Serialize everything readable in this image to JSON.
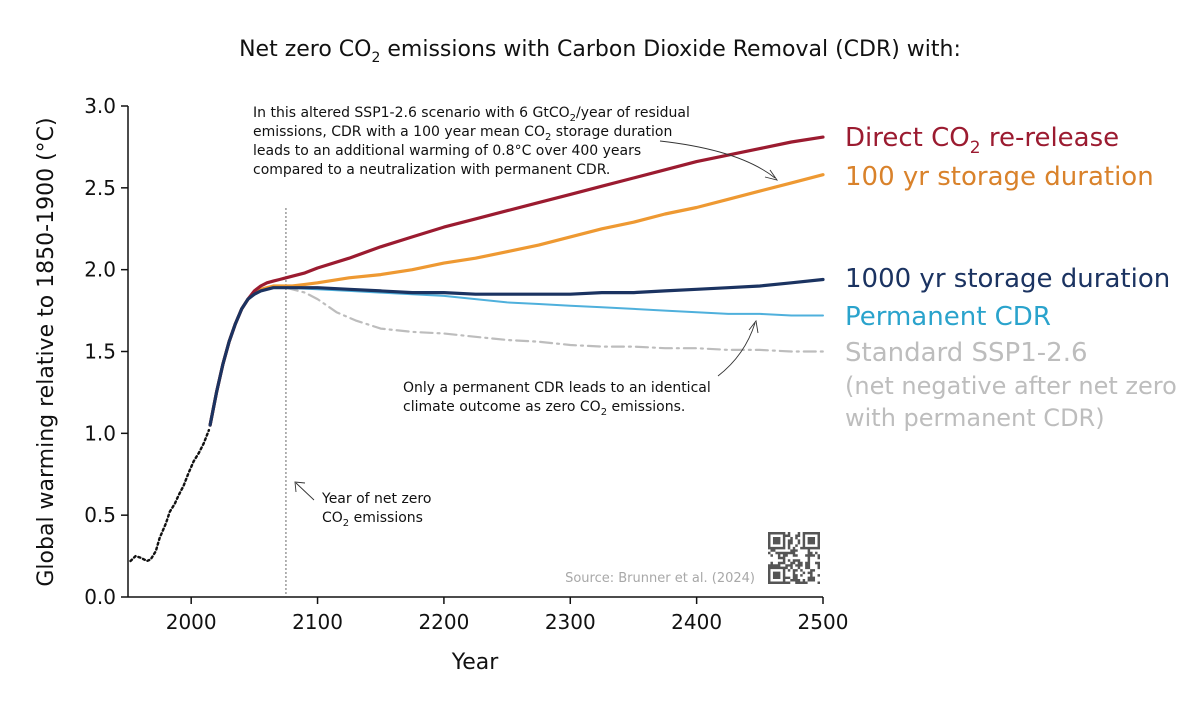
{
  "chart_data": {
    "type": "line",
    "title_pre": "Net zero CO",
    "title_sub": "2",
    "title_post": " emissions with Carbon Dioxide Removal (CDR) with:",
    "xlabel": "Year",
    "ylabel": "Global warming relative to 1850-1900 (°C)",
    "xlim": [
      1950,
      2500
    ],
    "ylim": [
      0,
      3.0
    ],
    "x_ticks": [
      2000,
      2100,
      2200,
      2300,
      2400,
      2500
    ],
    "y_ticks": [
      0.0,
      0.5,
      1.0,
      1.5,
      2.0,
      2.5,
      3.0
    ],
    "y_tick_labels": [
      "0.0",
      "0.5",
      "1.0",
      "1.5",
      "2.0",
      "2.5",
      "3.0"
    ],
    "historical": {
      "name": "Historical",
      "color": "#111111",
      "x": [
        1952,
        1956,
        1960,
        1965,
        1968,
        1972,
        1975,
        1980,
        1983,
        1987,
        1990,
        1994,
        1998,
        2002,
        2006,
        2010,
        2014
      ],
      "y": [
        0.22,
        0.25,
        0.24,
        0.22,
        0.23,
        0.28,
        0.36,
        0.45,
        0.52,
        0.57,
        0.62,
        0.68,
        0.76,
        0.83,
        0.88,
        0.94,
        1.02
      ]
    },
    "series": [
      {
        "name": "Direct CO2 re-release",
        "color": "#9b1b30",
        "x": [
          2015,
          2020,
          2025,
          2030,
          2035,
          2040,
          2045,
          2050,
          2055,
          2060,
          2065,
          2070,
          2075,
          2080,
          2090,
          2100,
          2125,
          2150,
          2175,
          2200,
          2225,
          2250,
          2275,
          2300,
          2325,
          2350,
          2375,
          2400,
          2425,
          2450,
          2475,
          2500
        ],
        "y": [
          1.05,
          1.25,
          1.42,
          1.56,
          1.67,
          1.76,
          1.82,
          1.87,
          1.9,
          1.92,
          1.93,
          1.94,
          1.95,
          1.96,
          1.98,
          2.01,
          2.07,
          2.14,
          2.2,
          2.26,
          2.31,
          2.36,
          2.41,
          2.46,
          2.51,
          2.56,
          2.61,
          2.66,
          2.7,
          2.74,
          2.78,
          2.81
        ]
      },
      {
        "name": "100 yr storage duration",
        "color": "#ee9932",
        "x": [
          2015,
          2020,
          2025,
          2030,
          2035,
          2040,
          2045,
          2050,
          2055,
          2060,
          2065,
          2070,
          2075,
          2080,
          2090,
          2100,
          2125,
          2150,
          2175,
          2200,
          2225,
          2250,
          2275,
          2300,
          2325,
          2350,
          2375,
          2400,
          2425,
          2450,
          2475,
          2500
        ],
        "y": [
          1.05,
          1.25,
          1.42,
          1.56,
          1.67,
          1.76,
          1.82,
          1.86,
          1.88,
          1.89,
          1.9,
          1.9,
          1.9,
          1.9,
          1.91,
          1.92,
          1.95,
          1.97,
          2.0,
          2.04,
          2.07,
          2.11,
          2.15,
          2.2,
          2.25,
          2.29,
          2.34,
          2.38,
          2.43,
          2.48,
          2.53,
          2.58
        ]
      },
      {
        "name": "1000 yr storage duration",
        "color": "#1b3361",
        "x": [
          2015,
          2020,
          2025,
          2030,
          2035,
          2040,
          2045,
          2050,
          2055,
          2060,
          2065,
          2070,
          2075,
          2080,
          2090,
          2100,
          2125,
          2150,
          2175,
          2200,
          2225,
          2250,
          2275,
          2300,
          2325,
          2350,
          2375,
          2400,
          2425,
          2450,
          2475,
          2500
        ],
        "y": [
          1.05,
          1.25,
          1.42,
          1.56,
          1.67,
          1.76,
          1.82,
          1.85,
          1.87,
          1.88,
          1.89,
          1.89,
          1.89,
          1.89,
          1.89,
          1.89,
          1.88,
          1.87,
          1.86,
          1.86,
          1.85,
          1.85,
          1.85,
          1.85,
          1.86,
          1.86,
          1.87,
          1.88,
          1.89,
          1.9,
          1.92,
          1.94
        ]
      },
      {
        "name": "Permanent CDR",
        "color": "#4fb0dc",
        "x": [
          2075,
          2100,
          2125,
          2150,
          2175,
          2200,
          2225,
          2250,
          2275,
          2300,
          2325,
          2350,
          2375,
          2400,
          2425,
          2450,
          2475,
          2500
        ],
        "y": [
          1.89,
          1.88,
          1.87,
          1.86,
          1.85,
          1.84,
          1.82,
          1.8,
          1.79,
          1.78,
          1.77,
          1.76,
          1.75,
          1.74,
          1.73,
          1.73,
          1.72,
          1.72
        ]
      },
      {
        "name": "Standard SSP1-2.6",
        "color": "#bdbdbd",
        "dashed": true,
        "x": [
          2075,
          2090,
          2100,
          2115,
          2130,
          2150,
          2175,
          2200,
          2225,
          2250,
          2275,
          2300,
          2325,
          2350,
          2375,
          2400,
          2425,
          2450,
          2475,
          2500
        ],
        "y": [
          1.89,
          1.86,
          1.82,
          1.74,
          1.69,
          1.64,
          1.62,
          1.61,
          1.59,
          1.57,
          1.56,
          1.54,
          1.53,
          1.53,
          1.52,
          1.52,
          1.51,
          1.51,
          1.5,
          1.5
        ]
      }
    ],
    "netzero_year": 2075,
    "legend": {
      "direct_pre": "Direct CO",
      "direct_sub": "2",
      "direct_post": " re-release",
      "storage100": "100 yr storage duration",
      "storage1000": "1000 yr storage duration",
      "permanent": "Permanent CDR",
      "ssp_line1": "Standard SSP1-2.6",
      "ssp_line2": "(net negative after net zero",
      "ssp_line3": "with permanent CDR)"
    },
    "annotations": {
      "top_l1_pre": "In this altered SSP1-2.6 scenario with 6 GtCO",
      "top_l1_sub": "2",
      "top_l1_post": "/year of residual",
      "top_l2_pre": "emissions, CDR with a 100 year mean CO",
      "top_l2_sub": "2",
      "top_l2_post": " storage duration",
      "top_l3_pre": "leads to an additional warming of 0.8°C over 400 years",
      "top_l4": "compared to a neutralization with permanent CDR.",
      "mid_l1": "Only a permanent CDR leads to an identical",
      "mid_l2_pre": "climate outcome as zero CO",
      "mid_l2_sub": "2",
      "mid_l2_post": " emissions.",
      "nz_l1": "Year of net zero",
      "nz_l2_pre": "CO",
      "nz_l2_sub": "2",
      "nz_l2_post": " emissions"
    },
    "source": "Source: Brunner et al. (2024)"
  },
  "colors": {
    "direct": "#9b1b30",
    "storage100": "#d9822b",
    "storage1000": "#1b3361",
    "permanent": "#2aa3cc",
    "ssp": "#bdbdbd"
  }
}
